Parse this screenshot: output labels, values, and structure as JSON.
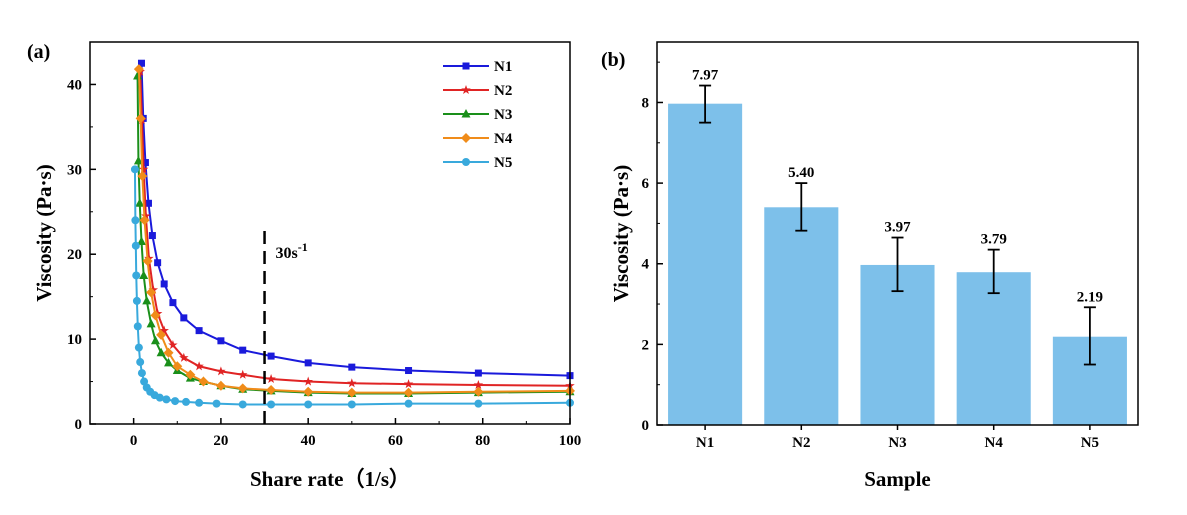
{
  "chart_data": [
    {
      "type": "line",
      "panel_label": "(a)",
      "xlabel": "Share rate（1/s）",
      "ylabel": "Viscosity (Pa·s)",
      "xlim": [
        -10,
        100
      ],
      "ylim": [
        0,
        45
      ],
      "xticks": [
        0,
        20,
        40,
        60,
        80,
        100
      ],
      "yticks": [
        0,
        10,
        20,
        30,
        40
      ],
      "legend_position": "top-right",
      "annotation": {
        "text": "30s",
        "superscript": "-1",
        "x_value": 30
      },
      "series": [
        {
          "name": "N1",
          "color": "#1a1adb",
          "marker": "square",
          "points": [
            [
              1.8,
              42.5
            ],
            [
              2.2,
              36
            ],
            [
              2.7,
              30.8
            ],
            [
              3.4,
              26
            ],
            [
              4.3,
              22.2
            ],
            [
              5.5,
              19
            ],
            [
              7,
              16.5
            ],
            [
              9,
              14.3
            ],
            [
              11.5,
              12.5
            ],
            [
              15,
              11
            ],
            [
              20,
              9.8
            ],
            [
              25,
              8.7
            ],
            [
              31.5,
              8
            ],
            [
              40,
              7.2
            ],
            [
              50,
              6.7
            ],
            [
              63,
              6.3
            ],
            [
              79,
              6
            ],
            [
              100,
              5.7
            ]
          ]
        },
        {
          "name": "N2",
          "color": "#e02424",
          "marker": "star",
          "points": [
            [
              1.5,
              41.5
            ],
            [
              1.9,
              35.8
            ],
            [
              2.3,
              30
            ],
            [
              2.8,
              24.5
            ],
            [
              3.5,
              19.5
            ],
            [
              4.5,
              15.8
            ],
            [
              5.5,
              13
            ],
            [
              7,
              11
            ],
            [
              9,
              9.3
            ],
            [
              11.5,
              7.8
            ],
            [
              15,
              6.8
            ],
            [
              20,
              6.2
            ],
            [
              25,
              5.8
            ],
            [
              31.5,
              5.3
            ],
            [
              40,
              5
            ],
            [
              50,
              4.8
            ],
            [
              63,
              4.7
            ],
            [
              79,
              4.6
            ],
            [
              100,
              4.5
            ]
          ]
        },
        {
          "name": "N3",
          "color": "#1a8f1a",
          "marker": "triangle",
          "points": [
            [
              0.9,
              41
            ],
            [
              1.1,
              31
            ],
            [
              1.4,
              26
            ],
            [
              1.8,
              21.5
            ],
            [
              2.3,
              17.5
            ],
            [
              3,
              14.5
            ],
            [
              4,
              11.8
            ],
            [
              5,
              9.8
            ],
            [
              6.3,
              8.4
            ],
            [
              8,
              7.2
            ],
            [
              10,
              6.3
            ],
            [
              13,
              5.4
            ],
            [
              16,
              5
            ],
            [
              20,
              4.5
            ],
            [
              25,
              4.1
            ],
            [
              31.5,
              3.9
            ],
            [
              40,
              3.7
            ],
            [
              50,
              3.6
            ],
            [
              63,
              3.6
            ],
            [
              79,
              3.7
            ],
            [
              100,
              3.8
            ]
          ]
        },
        {
          "name": "N4",
          "color": "#f08c1a",
          "marker": "diamond",
          "points": [
            [
              1.2,
              41.8
            ],
            [
              1.6,
              36
            ],
            [
              2,
              29.2
            ],
            [
              2.5,
              24
            ],
            [
              3.2,
              19.2
            ],
            [
              4,
              15.5
            ],
            [
              5,
              12.8
            ],
            [
              6.3,
              10.5
            ],
            [
              8,
              8.4
            ],
            [
              10,
              6.8
            ],
            [
              13,
              5.8
            ],
            [
              16,
              5
            ],
            [
              20,
              4.5
            ],
            [
              25,
              4.2
            ],
            [
              31.5,
              4
            ],
            [
              40,
              3.8
            ],
            [
              50,
              3.7
            ],
            [
              63,
              3.7
            ],
            [
              79,
              3.8
            ],
            [
              100,
              3.9
            ]
          ]
        },
        {
          "name": "N5",
          "color": "#39a9dc",
          "marker": "circle",
          "points": [
            [
              0.3,
              30
            ],
            [
              0.4,
              24
            ],
            [
              0.5,
              21
            ],
            [
              0.6,
              17.5
            ],
            [
              0.75,
              14.5
            ],
            [
              0.95,
              11.5
            ],
            [
              1.2,
              9
            ],
            [
              1.5,
              7.3
            ],
            [
              1.9,
              6
            ],
            [
              2.4,
              5
            ],
            [
              3,
              4.3
            ],
            [
              3.8,
              3.8
            ],
            [
              4.8,
              3.4
            ],
            [
              6,
              3.1
            ],
            [
              7.5,
              2.9
            ],
            [
              9.5,
              2.7
            ],
            [
              12,
              2.6
            ],
            [
              15,
              2.5
            ],
            [
              19,
              2.4
            ],
            [
              25,
              2.3
            ],
            [
              31.5,
              2.3
            ],
            [
              40,
              2.3
            ],
            [
              50,
              2.3
            ],
            [
              63,
              2.4
            ],
            [
              79,
              2.4
            ],
            [
              100,
              2.5
            ]
          ]
        }
      ]
    },
    {
      "type": "bar",
      "panel_label": "(b)",
      "xlabel": "Sample",
      "ylabel": "Viscosity (Pa·s)",
      "ylim": [
        0,
        9.5
      ],
      "yticks": [
        0,
        2,
        4,
        6,
        8
      ],
      "bar_color": "#7dc0ea",
      "categories": [
        "N1",
        "N2",
        "N3",
        "N4",
        "N5"
      ],
      "values": [
        7.97,
        5.4,
        3.97,
        3.79,
        2.19
      ],
      "value_labels": [
        "7.97",
        "5.40",
        "3.97",
        "3.79",
        "2.19"
      ],
      "error_bars": [
        [
          7.5,
          8.42
        ],
        [
          4.82,
          6.0
        ],
        [
          3.32,
          4.65
        ],
        [
          3.27,
          4.35
        ],
        [
          1.5,
          2.92
        ]
      ]
    }
  ]
}
